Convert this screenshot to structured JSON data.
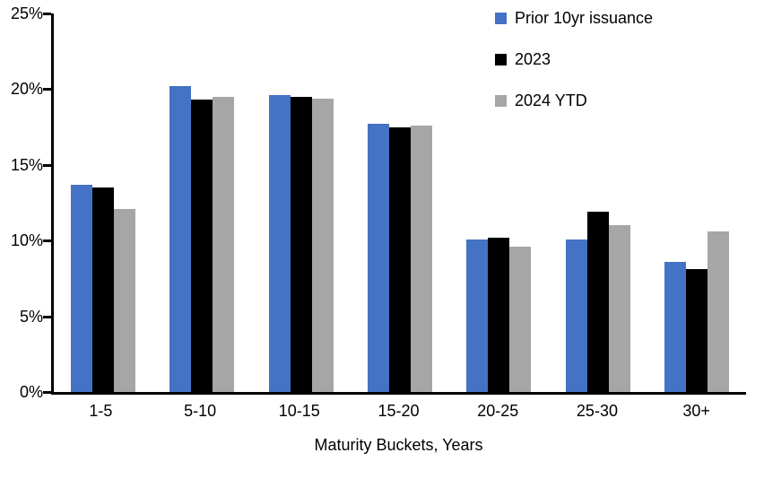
{
  "chart_data": {
    "type": "bar",
    "title": "",
    "categories": [
      "1-5",
      "5-10",
      "10-15",
      "15-20",
      "20-25",
      "25-30",
      "30+"
    ],
    "series": [
      {
        "name": "Prior 10yr issuance",
        "color": "#4472C4",
        "values": [
          13.7,
          20.2,
          19.6,
          17.7,
          10.1,
          10.1,
          8.6
        ]
      },
      {
        "name": "2023",
        "color": "#000000",
        "values": [
          13.5,
          19.3,
          19.5,
          17.5,
          10.2,
          11.9,
          8.1
        ]
      },
      {
        "name": "2024 YTD",
        "color": "#A6A6A6",
        "values": [
          12.1,
          19.5,
          19.4,
          17.6,
          9.6,
          11.0,
          10.6
        ]
      }
    ],
    "xlabel": "Maturity Buckets, Years",
    "ylabel": "",
    "ylim": [
      0,
      25
    ],
    "yticks": [
      {
        "value": 0,
        "label": "0%"
      },
      {
        "value": 5,
        "label": "5%"
      },
      {
        "value": 10,
        "label": "10%"
      },
      {
        "value": 15,
        "label": "15%"
      },
      {
        "value": 20,
        "label": "20%"
      },
      {
        "value": 25,
        "label": "25%"
      }
    ],
    "grid": false,
    "legend_position": "top-right"
  }
}
